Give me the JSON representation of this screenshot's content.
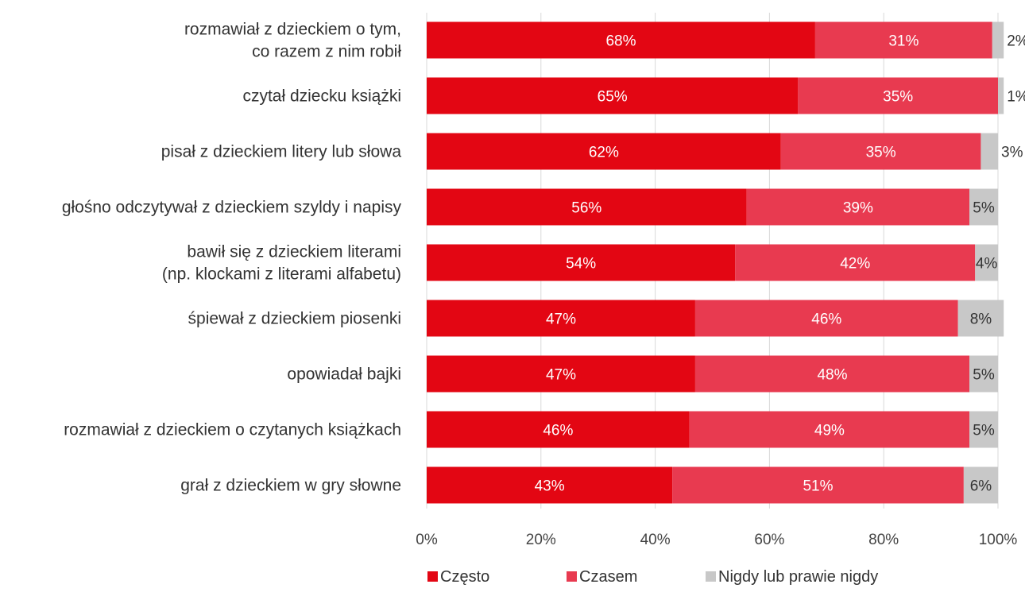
{
  "chart_data": {
    "type": "bar",
    "orientation": "horizontal",
    "stacked": true,
    "percent": true,
    "title": "",
    "xlabel": "",
    "ylabel": "",
    "xlim": [
      0,
      100
    ],
    "grid": true,
    "legend_position": "bottom",
    "categories": [
      "rozmawiał z dzieckiem o tym,\nco razem z nim robił",
      "czytał dziecku książki",
      "pisał z dzieckiem litery lub słowa",
      "głośno odczytywał z dzieckiem szyldy i napisy",
      "bawił się z dzieckiem literami\n(np. klockami z literami alfabetu)",
      "śpiewał z dzieckiem piosenki",
      "opowiadał bajki",
      "rozmawiał z dzieckiem o czytanych książkach",
      "grał z dzieckiem w gry słowne"
    ],
    "series": [
      {
        "name": "Często",
        "color": "#e30613",
        "values": [
          68,
          65,
          62,
          56,
          54,
          47,
          47,
          46,
          43
        ]
      },
      {
        "name": "Czasem",
        "color": "#e83a50",
        "values": [
          31,
          35,
          35,
          39,
          42,
          46,
          48,
          49,
          51
        ]
      },
      {
        "name": "Nigdy lub prawie nigdy",
        "color": "#c8c8c8",
        "values": [
          2,
          1,
          3,
          5,
          4,
          8,
          5,
          5,
          6
        ]
      }
    ],
    "x_ticks": [
      "0%",
      "20%",
      "40%",
      "60%",
      "80%",
      "100%"
    ],
    "label_suffix": "%"
  }
}
